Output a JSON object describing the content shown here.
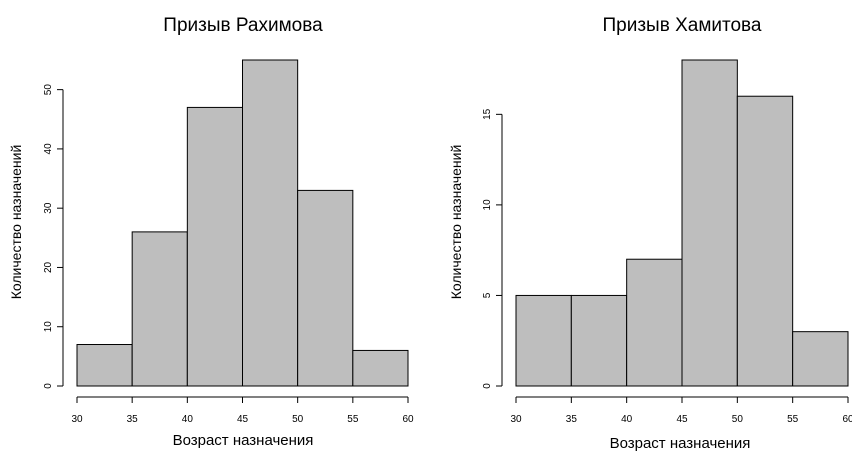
{
  "chart_data": [
    {
      "type": "bar",
      "title": "Призыв Рахимова",
      "xlabel": "Возраст назначения",
      "ylabel": "Количество назначений",
      "bins": [
        [
          30,
          35
        ],
        [
          35,
          40
        ],
        [
          40,
          45
        ],
        [
          45,
          50
        ],
        [
          50,
          55
        ],
        [
          55,
          60
        ]
      ],
      "values": [
        7,
        26,
        47,
        55,
        33,
        6
      ],
      "xlim": [
        30,
        60
      ],
      "ylim": [
        0,
        55
      ],
      "xticks": [
        "30",
        "35",
        "40",
        "45",
        "50",
        "55",
        "60"
      ],
      "yticks": [
        "0",
        "10",
        "20",
        "30",
        "40",
        "50"
      ],
      "bar_color": "#bebebe",
      "grid": false
    },
    {
      "type": "bar",
      "title": "Призыв Хамитова",
      "xlabel": "Возраст назначения",
      "ylabel": "Количество назначений",
      "bins": [
        [
          30,
          35
        ],
        [
          35,
          40
        ],
        [
          40,
          45
        ],
        [
          45,
          50
        ],
        [
          50,
          55
        ],
        [
          55,
          60
        ]
      ],
      "values": [
        5,
        5,
        7,
        18,
        16,
        3
      ],
      "xlim": [
        30,
        60
      ],
      "ylim": [
        0,
        18
      ],
      "xticks": [
        "30",
        "35",
        "40",
        "45",
        "50",
        "55",
        "60"
      ],
      "yticks": [
        "0",
        "5",
        "10",
        "15"
      ],
      "bar_color": "#bebebe",
      "grid": false
    }
  ]
}
